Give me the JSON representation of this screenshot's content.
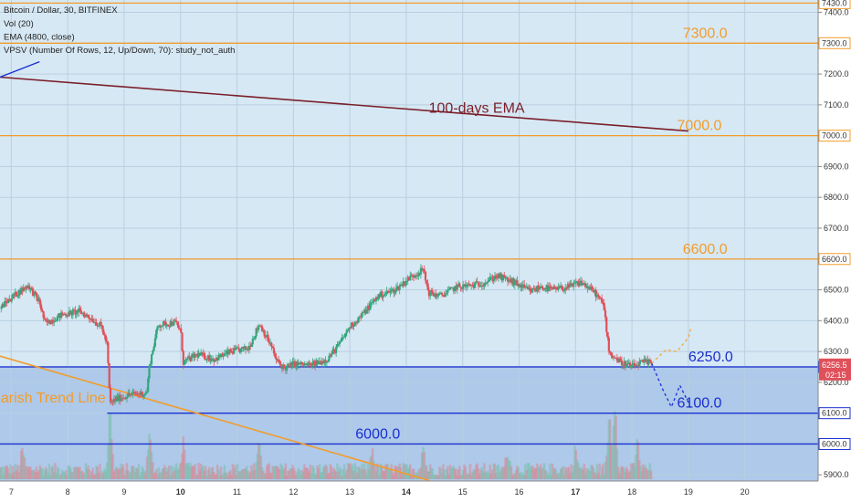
{
  "chart_data": {
    "type": "candlestick",
    "title": "Bitcoin / Dollar, 30, BITFINEX",
    "legend_lines": [
      "Vol (20)",
      "EMA (4800, close)",
      "VPSV (Number Of Rows, 12, Up/Down, 70): study_not_auth"
    ],
    "x_ticks": [
      {
        "day": 7,
        "label": "7",
        "bold": false
      },
      {
        "day": 8,
        "label": "8",
        "bold": false
      },
      {
        "day": 9,
        "label": "9",
        "bold": false
      },
      {
        "day": 10,
        "label": "10",
        "bold": true
      },
      {
        "day": 11,
        "label": "11",
        "bold": false
      },
      {
        "day": 12,
        "label": "12",
        "bold": false
      },
      {
        "day": 13,
        "label": "13",
        "bold": false
      },
      {
        "day": 14,
        "label": "14",
        "bold": true
      },
      {
        "day": 15,
        "label": "15",
        "bold": false
      },
      {
        "day": 16,
        "label": "16",
        "bold": false
      },
      {
        "day": 17,
        "label": "17",
        "bold": true
      },
      {
        "day": 18,
        "label": "18",
        "bold": false
      },
      {
        "day": 19,
        "label": "19",
        "bold": false
      },
      {
        "day": 20,
        "label": "20",
        "bold": false
      }
    ],
    "y_ticks": [
      5900,
      6000,
      6100,
      6200,
      6300,
      6400,
      6500,
      6600,
      6700,
      6800,
      6900,
      7000,
      7100,
      7200,
      7300,
      7400
    ],
    "ylim": [
      5880,
      7440
    ],
    "xlim": [
      6.8,
      21.3
    ],
    "levels": [
      {
        "value": 7430,
        "tag": "7430.0",
        "label": "7430.0",
        "color": "#f39c2a",
        "label_day": 15.0
      },
      {
        "value": 7300,
        "tag": "7300.0",
        "label": "7300.0",
        "color": "#f39c2a",
        "label_day": 18.9
      },
      {
        "value": 7000,
        "tag": "7000.0",
        "label": "7000.0",
        "color": "#f39c2a",
        "label_day": 18.8
      },
      {
        "value": 6600,
        "tag": "6600.0",
        "label": "6600.0",
        "color": "#f39c2a",
        "label_day": 18.9
      },
      {
        "value": 6250,
        "tag": "6250.0",
        "label": "6250.0",
        "color": "#1a2fd0",
        "label_day": 19.0
      },
      {
        "value": 6100,
        "tag": "6100.0",
        "label": "6100.0",
        "color": "#1a2fd0",
        "label_day": 18.8,
        "from_day": 8.7
      },
      {
        "value": 6000,
        "tag": "6000.0",
        "label": "6000.0",
        "color": "#1a2fd0",
        "label_day": 13.1
      }
    ],
    "current_price": {
      "value": 6256.5,
      "tag": "6256.5",
      "countdown": "02:15",
      "color": "#e0505a"
    },
    "ema_line": {
      "label": "100-days EMA",
      "color": "#7a1f2a",
      "points": [
        [
          6.8,
          7190
        ],
        [
          19.0,
          7015
        ]
      ],
      "label_day": 14.4,
      "label_value": 7075
    },
    "bearish_trend_line": {
      "label": "earish Trend Line",
      "color": "#f39c2a",
      "points": [
        [
          6.8,
          6285
        ],
        [
          14.4,
          5882
        ]
      ],
      "label_day": 6.8,
      "label_value": 6135
    },
    "small_blue_trend": {
      "color": "#1a2fd0",
      "points": [
        [
          6.8,
          7190
        ],
        [
          7.5,
          7240
        ]
      ]
    },
    "forecast_up": {
      "color": "#f3a83a",
      "points": [
        [
          18.35,
          6262
        ],
        [
          18.6,
          6305
        ],
        [
          18.8,
          6300
        ],
        [
          19.0,
          6345
        ],
        [
          19.05,
          6380
        ]
      ]
    },
    "forecast_down": {
      "color": "#1a2fd0",
      "points": [
        [
          18.35,
          6262
        ],
        [
          18.55,
          6175
        ],
        [
          18.7,
          6120
        ],
        [
          18.85,
          6190
        ],
        [
          19.0,
          6135
        ],
        [
          19.05,
          6110
        ]
      ]
    },
    "zone_upper": {
      "from": 6253,
      "to": 7440,
      "color": "#d6e8f4"
    },
    "zone_lower": {
      "from": 5880,
      "to": 6253,
      "color": "#aec9e9"
    },
    "price_path": [
      [
        6.8,
        6440
      ],
      [
        7.0,
        6475
      ],
      [
        7.3,
        6515
      ],
      [
        7.5,
        6460
      ],
      [
        7.6,
        6390
      ],
      [
        7.9,
        6420
      ],
      [
        8.2,
        6430
      ],
      [
        8.4,
        6410
      ],
      [
        8.6,
        6380
      ],
      [
        8.7,
        6320
      ],
      [
        8.75,
        6130
      ],
      [
        8.85,
        6145
      ],
      [
        9.1,
        6160
      ],
      [
        9.4,
        6165
      ],
      [
        9.45,
        6255
      ],
      [
        9.6,
        6385
      ],
      [
        9.9,
        6395
      ],
      [
        10.0,
        6370
      ],
      [
        10.05,
        6265
      ],
      [
        10.3,
        6290
      ],
      [
        10.6,
        6275
      ],
      [
        10.9,
        6300
      ],
      [
        11.2,
        6310
      ],
      [
        11.4,
        6390
      ],
      [
        11.6,
        6320
      ],
      [
        11.7,
        6270
      ],
      [
        11.85,
        6245
      ],
      [
        12.0,
        6260
      ],
      [
        12.3,
        6255
      ],
      [
        12.6,
        6275
      ],
      [
        12.8,
        6320
      ],
      [
        13.0,
        6380
      ],
      [
        13.2,
        6415
      ],
      [
        13.5,
        6480
      ],
      [
        13.8,
        6500
      ],
      [
        14.1,
        6545
      ],
      [
        14.3,
        6565
      ],
      [
        14.4,
        6490
      ],
      [
        14.6,
        6480
      ],
      [
        14.9,
        6510
      ],
      [
        15.2,
        6515
      ],
      [
        15.4,
        6525
      ],
      [
        15.6,
        6545
      ],
      [
        15.9,
        6525
      ],
      [
        16.2,
        6495
      ],
      [
        16.4,
        6510
      ],
      [
        16.6,
        6500
      ],
      [
        16.9,
        6510
      ],
      [
        17.1,
        6525
      ],
      [
        17.35,
        6490
      ],
      [
        17.5,
        6450
      ],
      [
        17.6,
        6295
      ],
      [
        17.8,
        6265
      ],
      [
        18.0,
        6250
      ],
      [
        18.2,
        6265
      ],
      [
        18.35,
        6262
      ]
    ],
    "volume_spikes": [
      [
        7.2,
        0.9
      ],
      [
        8.75,
        2.8
      ],
      [
        9.45,
        1.6
      ],
      [
        10.05,
        1.4
      ],
      [
        11.4,
        1.2
      ],
      [
        13.4,
        1.0
      ],
      [
        14.3,
        1.1
      ],
      [
        15.8,
        0.9
      ],
      [
        17.0,
        1.0
      ],
      [
        17.6,
        2.6
      ],
      [
        17.7,
        3.2
      ],
      [
        18.1,
        1.3
      ]
    ]
  }
}
